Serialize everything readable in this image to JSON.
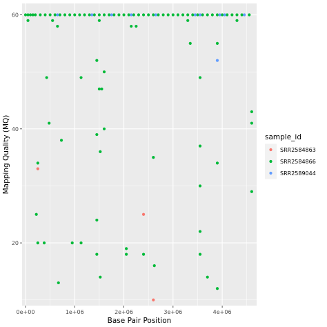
{
  "chart_data": {
    "type": "scatter",
    "xlabel": "Base Pair Position",
    "ylabel": "Mapping Quality (MQ)",
    "xlim": [
      -70000,
      4700000
    ],
    "ylim": [
      9,
      62
    ],
    "x_ticks": [
      0,
      1000000,
      2000000,
      3000000,
      4000000
    ],
    "x_tick_labels": [
      "0e+00",
      "1e+06",
      "2e+06",
      "3e+06",
      "4e+06"
    ],
    "y_ticks": [
      20,
      40,
      60
    ],
    "y_tick_labels": [
      "20",
      "40",
      "60"
    ],
    "grid": true,
    "legend": {
      "title": "sample_id",
      "position": "right"
    },
    "series": [
      {
        "name": "SRR2584863",
        "color": "#F8766D",
        "points": [
          [
            250000,
            33
          ],
          [
            2400000,
            25
          ],
          [
            2600000,
            10
          ]
        ]
      },
      {
        "name": "SRR2584866",
        "color": "#00BA38",
        "points": [
          [
            0,
            60
          ],
          [
            50000,
            60
          ],
          [
            100000,
            60
          ],
          [
            150000,
            60
          ],
          [
            200000,
            60
          ],
          [
            300000,
            60
          ],
          [
            400000,
            60
          ],
          [
            500000,
            60
          ],
          [
            600000,
            60
          ],
          [
            700000,
            60
          ],
          [
            800000,
            60
          ],
          [
            900000,
            60
          ],
          [
            1000000,
            60
          ],
          [
            1100000,
            60
          ],
          [
            1200000,
            60
          ],
          [
            1300000,
            60
          ],
          [
            1400000,
            60
          ],
          [
            1500000,
            60
          ],
          [
            1600000,
            60
          ],
          [
            1700000,
            60
          ],
          [
            1800000,
            60
          ],
          [
            1900000,
            60
          ],
          [
            2000000,
            60
          ],
          [
            2100000,
            60
          ],
          [
            2200000,
            60
          ],
          [
            2300000,
            60
          ],
          [
            2400000,
            60
          ],
          [
            2500000,
            60
          ],
          [
            2600000,
            60
          ],
          [
            2700000,
            60
          ],
          [
            2800000,
            60
          ],
          [
            2900000,
            60
          ],
          [
            3000000,
            60
          ],
          [
            3100000,
            60
          ],
          [
            3200000,
            60
          ],
          [
            3300000,
            60
          ],
          [
            3400000,
            60
          ],
          [
            3500000,
            60
          ],
          [
            3600000,
            60
          ],
          [
            3700000,
            60
          ],
          [
            3800000,
            60
          ],
          [
            3900000,
            60
          ],
          [
            4000000,
            60
          ],
          [
            4100000,
            60
          ],
          [
            4200000,
            60
          ],
          [
            4300000,
            60
          ],
          [
            4400000,
            60
          ],
          [
            4550000,
            60
          ],
          [
            50000,
            59
          ],
          [
            550000,
            59
          ],
          [
            1500000,
            59
          ],
          [
            3300000,
            59
          ],
          [
            4300000,
            59
          ],
          [
            650000,
            58
          ],
          [
            2150000,
            58
          ],
          [
            2250000,
            58
          ],
          [
            3350000,
            55
          ],
          [
            3900000,
            55
          ],
          [
            1450000,
            52
          ],
          [
            1600000,
            50
          ],
          [
            430000,
            49
          ],
          [
            1130000,
            49
          ],
          [
            3550000,
            49
          ],
          [
            1500000,
            47
          ],
          [
            1550000,
            47
          ],
          [
            4600000,
            43
          ],
          [
            480000,
            41
          ],
          [
            4600000,
            41
          ],
          [
            1600000,
            40
          ],
          [
            1450000,
            39
          ],
          [
            730000,
            38
          ],
          [
            3550000,
            37
          ],
          [
            1520000,
            36
          ],
          [
            2600000,
            35
          ],
          [
            250000,
            34
          ],
          [
            3900000,
            34
          ],
          [
            3550000,
            30
          ],
          [
            4600000,
            29
          ],
          [
            220000,
            25
          ],
          [
            1450000,
            24
          ],
          [
            3550000,
            22
          ],
          [
            250000,
            20
          ],
          [
            380000,
            20
          ],
          [
            950000,
            20
          ],
          [
            1130000,
            20
          ],
          [
            2050000,
            19
          ],
          [
            2050000,
            18
          ],
          [
            1450000,
            18
          ],
          [
            2400000,
            18
          ],
          [
            3550000,
            18
          ],
          [
            2620000,
            16
          ],
          [
            3700000,
            14
          ],
          [
            1520000,
            14
          ],
          [
            670000,
            13
          ],
          [
            3900000,
            12
          ]
        ]
      },
      {
        "name": "SRR2589044",
        "color": "#619CFF",
        "points": [
          [
            650000,
            60
          ],
          [
            1350000,
            60
          ],
          [
            1750000,
            60
          ],
          [
            2150000,
            60
          ],
          [
            2650000,
            60
          ],
          [
            3450000,
            60
          ],
          [
            3550000,
            60
          ],
          [
            3950000,
            60
          ],
          [
            4050000,
            60
          ],
          [
            4450000,
            60
          ],
          [
            3900000,
            52
          ]
        ]
      }
    ]
  }
}
